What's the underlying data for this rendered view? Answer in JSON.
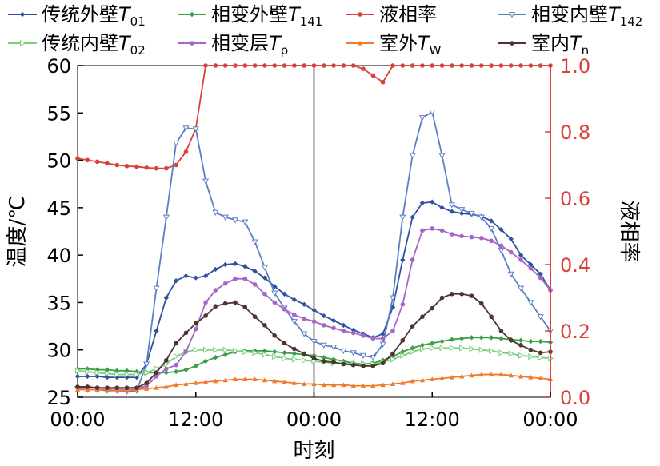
{
  "chart_data": {
    "type": "line",
    "xlabel": "时刻",
    "ylabel": "温度/℃",
    "y2label": "液相率",
    "x_tick_labels": [
      "00:00",
      "12:00",
      "00:00",
      "12:00",
      "00:00"
    ],
    "x_tick_hours": [
      0,
      12,
      24,
      36,
      48
    ],
    "xlim": [
      0,
      48
    ],
    "ylim": [
      25,
      60
    ],
    "y_ticks": [
      25,
      30,
      35,
      40,
      45,
      50,
      55,
      60
    ],
    "y2lim": [
      0,
      1
    ],
    "y2_ticks": [
      "0.0",
      "0.2",
      "0.4",
      "0.6",
      "0.8",
      "1.0"
    ],
    "y2_tick_values": [
      0,
      0.2,
      0.4,
      0.6,
      0.8,
      1.0
    ],
    "grid": false,
    "legend_position": "top",
    "day_divider_hour": 24,
    "x": [
      0,
      1,
      2,
      3,
      4,
      5,
      6,
      7,
      8,
      9,
      10,
      11,
      12,
      13,
      14,
      15,
      16,
      17,
      18,
      19,
      20,
      21,
      22,
      23,
      24,
      25,
      26,
      27,
      28,
      29,
      30,
      31,
      32,
      33,
      34,
      35,
      36,
      37,
      38,
      39,
      40,
      41,
      42,
      43,
      44,
      45,
      46,
      47,
      48
    ],
    "series": [
      {
        "name": "传统外壁T01",
        "legend_main": "传统外壁",
        "legend_var": "T",
        "legend_sub": "01",
        "color": "#2f52a0",
        "marker": "diamond",
        "axis": "left",
        "values": [
          27.2,
          27.2,
          27.2,
          27.1,
          27.1,
          27.1,
          27.1,
          28.5,
          32.0,
          35.5,
          37.3,
          37.8,
          37.6,
          37.8,
          38.5,
          39.0,
          39.1,
          38.8,
          38.3,
          37.6,
          36.7,
          35.9,
          35.3,
          34.8,
          34.2,
          33.6,
          33.1,
          32.6,
          32.1,
          31.7,
          31.3,
          31.7,
          34.5,
          39.5,
          44.0,
          45.5,
          45.6,
          45.0,
          44.6,
          44.4,
          44.3,
          44.1,
          43.6,
          42.7,
          41.7,
          40.0,
          39.0,
          38.0,
          36.3
        ]
      },
      {
        "name": "相变外壁T141",
        "legend_main": "相变外壁",
        "legend_var": "T",
        "legend_sub": "141",
        "color": "#3a9d48",
        "marker": "diamond",
        "axis": "left",
        "values": [
          28.0,
          28.0,
          27.9,
          27.9,
          27.8,
          27.8,
          27.7,
          27.6,
          27.6,
          27.6,
          27.7,
          27.9,
          28.3,
          28.8,
          29.2,
          29.5,
          29.8,
          29.9,
          29.9,
          29.9,
          29.8,
          29.7,
          29.6,
          29.5,
          29.4,
          29.2,
          29.0,
          28.8,
          28.6,
          28.5,
          28.6,
          28.9,
          29.3,
          29.8,
          30.2,
          30.5,
          30.7,
          30.9,
          31.1,
          31.2,
          31.3,
          31.3,
          31.3,
          31.2,
          31.1,
          31.0,
          30.9,
          30.9,
          30.8
        ]
      },
      {
        "name": "液相率",
        "legend_main": "液相率",
        "legend_var": "",
        "legend_sub": "",
        "color": "#d9413a",
        "marker": "circle",
        "axis": "right",
        "values": [
          0.72,
          0.715,
          0.71,
          0.705,
          0.7,
          0.697,
          0.695,
          0.692,
          0.69,
          0.69,
          0.7,
          0.74,
          0.81,
          1.0,
          1.0,
          1.0,
          1.0,
          1.0,
          1.0,
          1.0,
          1.0,
          1.0,
          1.0,
          1.0,
          1.0,
          1.0,
          1.0,
          1.0,
          1.0,
          0.99,
          0.97,
          0.95,
          1.0,
          1.0,
          1.0,
          1.0,
          1.0,
          1.0,
          1.0,
          1.0,
          1.0,
          1.0,
          1.0,
          1.0,
          1.0,
          1.0,
          1.0,
          1.0,
          1.0
        ]
      },
      {
        "name": "相变内壁T142",
        "legend_main": "相变内壁",
        "legend_var": "T",
        "legend_sub": "142",
        "color": "#5b7fc4",
        "marker": "triangle-down",
        "axis": "left",
        "values": [
          25.9,
          25.8,
          25.8,
          25.7,
          25.7,
          25.6,
          25.7,
          28.5,
          36.5,
          44.0,
          51.8,
          53.4,
          53.3,
          47.8,
          44.5,
          44.0,
          43.7,
          43.5,
          41.4,
          38.7,
          36.0,
          34.4,
          33.0,
          31.7,
          30.9,
          30.5,
          30.3,
          29.9,
          29.7,
          29.4,
          29.2,
          30.6,
          35.5,
          44.0,
          50.5,
          54.5,
          55.1,
          50.5,
          45.3,
          44.8,
          44.4,
          44.0,
          42.8,
          40.5,
          38.0,
          36.5,
          35.0,
          33.5,
          32.0
        ]
      },
      {
        "name": "传统内壁T02",
        "legend_main": "传统内壁",
        "legend_var": "T",
        "legend_sub": "02",
        "color": "#7ccd7c",
        "marker": "triangle-right",
        "axis": "left",
        "values": [
          27.8,
          27.7,
          27.6,
          27.5,
          27.4,
          27.4,
          27.4,
          27.6,
          28.0,
          28.5,
          29.3,
          29.8,
          30.0,
          30.0,
          30.0,
          30.0,
          29.9,
          29.8,
          29.7,
          29.5,
          29.3,
          29.1,
          29.0,
          28.9,
          28.8,
          28.7,
          28.6,
          28.6,
          28.5,
          28.5,
          28.5,
          28.7,
          29.0,
          29.4,
          29.8,
          30.1,
          30.2,
          30.2,
          30.2,
          30.2,
          30.1,
          30.0,
          29.9,
          29.7,
          29.6,
          29.4,
          29.3,
          29.2,
          29.1
        ]
      },
      {
        "name": "相变层Tp",
        "legend_main": "相变层",
        "legend_var": "T",
        "legend_sub": "p",
        "color": "#a566c8",
        "marker": "circle",
        "axis": "left",
        "values": [
          26.0,
          26.0,
          26.0,
          25.9,
          25.9,
          25.8,
          25.9,
          26.2,
          27.2,
          28.0,
          28.4,
          29.8,
          32.2,
          35.0,
          36.3,
          37.0,
          37.5,
          37.5,
          36.9,
          35.9,
          35.0,
          34.3,
          33.7,
          33.3,
          33.0,
          32.6,
          32.3,
          32.0,
          31.8,
          31.5,
          31.2,
          31.2,
          32.0,
          34.8,
          39.5,
          42.6,
          42.8,
          42.6,
          42.2,
          42.0,
          41.9,
          41.8,
          41.5,
          41.0,
          40.3,
          39.5,
          38.6,
          37.6,
          36.3
        ]
      },
      {
        "name": "室外TW",
        "legend_main": "室外",
        "legend_var": "T",
        "legend_sub": "W",
        "color": "#f07b2c",
        "marker": "triangle-up",
        "axis": "left",
        "values": [
          25.8,
          25.8,
          25.8,
          25.8,
          25.7,
          25.7,
          25.8,
          25.9,
          26.0,
          26.1,
          26.3,
          26.4,
          26.5,
          26.6,
          26.7,
          26.8,
          26.9,
          26.9,
          26.9,
          26.8,
          26.7,
          26.6,
          26.5,
          26.4,
          26.4,
          26.3,
          26.3,
          26.3,
          26.2,
          26.2,
          26.2,
          26.3,
          26.4,
          26.5,
          26.7,
          26.8,
          26.9,
          27.0,
          27.1,
          27.2,
          27.3,
          27.4,
          27.4,
          27.4,
          27.3,
          27.2,
          27.1,
          27.0,
          26.9
        ]
      },
      {
        "name": "室内Tn",
        "legend_main": "室内",
        "legend_var": "T",
        "legend_sub": "n",
        "color": "#4e3431",
        "marker": "circle",
        "axis": "left",
        "values": [
          26.1,
          26.1,
          26.0,
          26.0,
          26.0,
          26.0,
          26.0,
          26.5,
          27.6,
          28.9,
          30.7,
          31.8,
          32.8,
          33.6,
          34.6,
          34.9,
          35.0,
          34.5,
          33.5,
          32.6,
          31.5,
          30.7,
          30.1,
          29.6,
          29.1,
          28.8,
          28.7,
          28.5,
          28.4,
          28.3,
          28.3,
          28.6,
          29.6,
          31.0,
          32.5,
          33.5,
          34.4,
          35.5,
          35.9,
          35.9,
          35.7,
          34.9,
          33.5,
          32.0,
          31.0,
          30.5,
          30.0,
          29.7,
          29.8
        ]
      }
    ]
  }
}
